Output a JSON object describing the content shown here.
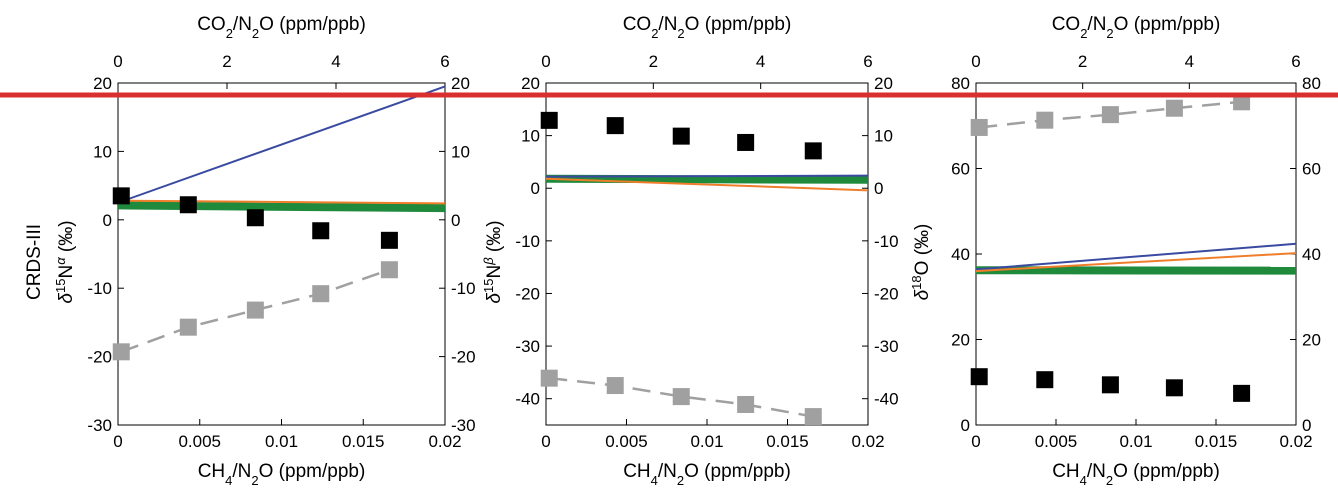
{
  "figure": {
    "row_label": "CRDS-III",
    "top_xlabel_main": "CO",
    "top_xlabel_sub1": "2",
    "top_xlabel_mid": "/N",
    "top_xlabel_sub2": "2",
    "top_xlabel_tail": "O (ppm/ppb)",
    "bottom_xlabel_main": "CH",
    "bottom_xlabel_sub1": "4",
    "bottom_xlabel_mid": "/N",
    "bottom_xlabel_sub2": "2",
    "bottom_xlabel_tail": "O (ppm/ppb)",
    "overlay_line_color": "#d9302f"
  },
  "chart_data": [
    {
      "type": "scatter",
      "ylabel_delta": "δ",
      "ylabel_sup": "15",
      "ylabel_base": "N",
      "ylabel_exp": "α",
      "ylabel_unit": " (‰)",
      "xlim": [
        0,
        0.02
      ],
      "ylim": [
        -30,
        20
      ],
      "x2lim": [
        0,
        6
      ],
      "xticks": [
        "0",
        "0.005",
        "0.01",
        "0.015",
        "0.02"
      ],
      "x2ticks": [
        "0",
        "2",
        "4",
        "6"
      ],
      "yticks": [
        "-30",
        "-20",
        "-10",
        "0",
        "10",
        "20"
      ],
      "y2ticks": [
        "-30",
        "-20",
        "-10",
        "0",
        "10",
        "20"
      ],
      "series": [
        {
          "marker": "square",
          "color": "#000000",
          "x": [
            0.0002,
            0.0043,
            0.0084,
            0.0124,
            0.0166
          ],
          "y": [
            3.5,
            2.2,
            0.3,
            -1.6,
            -3.0
          ]
        },
        {
          "marker": "square",
          "color": "#a0a0a0",
          "dashed_line": true,
          "x": [
            0.0002,
            0.0043,
            0.0084,
            0.0124,
            0.0166
          ],
          "y": [
            -19.3,
            -15.7,
            -13.2,
            -10.8,
            -7.3
          ]
        },
        {
          "line": true,
          "color": "#3a4aa0",
          "width": 2,
          "x": [
            0,
            0.02
          ],
          "y": [
            2.5,
            19.5
          ]
        },
        {
          "line": true,
          "color": "#1f8a3c",
          "width": 8,
          "x": [
            0,
            0.02
          ],
          "y": [
            2.1,
            1.7
          ]
        },
        {
          "line": true,
          "color": "#f07d2a",
          "width": 2,
          "x": [
            0,
            0.02
          ],
          "y": [
            2.8,
            2.4
          ]
        }
      ]
    },
    {
      "type": "scatter",
      "ylabel_delta": "δ",
      "ylabel_sup": "15",
      "ylabel_base": "N",
      "ylabel_exp": "β",
      "ylabel_unit": " (‰)",
      "xlim": [
        0,
        0.02
      ],
      "ylim": [
        -45,
        20
      ],
      "x2lim": [
        0,
        6
      ],
      "xticks": [
        "0",
        "0.005",
        "0.01",
        "0.015",
        "0.02"
      ],
      "x2ticks": [
        "0",
        "2",
        "4",
        "6"
      ],
      "yticks": [
        "-40",
        "-30",
        "-20",
        "-10",
        "0",
        "10",
        "20"
      ],
      "y2ticks": [
        "-40",
        "-30",
        "-20",
        "-10",
        "0",
        "10",
        "20"
      ],
      "series": [
        {
          "marker": "square",
          "color": "#000000",
          "x": [
            0.0002,
            0.0043,
            0.0084,
            0.0124,
            0.0166
          ],
          "y": [
            12.9,
            11.9,
            9.9,
            8.7,
            7.1
          ]
        },
        {
          "marker": "square",
          "color": "#a0a0a0",
          "dashed_line": true,
          "x": [
            0.0002,
            0.0043,
            0.0084,
            0.0124,
            0.0166
          ],
          "y": [
            -36.1,
            -37.5,
            -39.6,
            -41.1,
            -43.4
          ]
        },
        {
          "line": true,
          "color": "#1f8a3c",
          "width": 8,
          "x": [
            0,
            0.02
          ],
          "y": [
            1.8,
            1.6
          ]
        },
        {
          "line": true,
          "color": "#3a4aa0",
          "width": 2,
          "x": [
            0,
            0.02
          ],
          "y": [
            2.2,
            2.4
          ]
        },
        {
          "line": true,
          "color": "#f07d2a",
          "width": 2,
          "x": [
            0,
            0.02
          ],
          "y": [
            1.8,
            -0.4
          ]
        }
      ]
    },
    {
      "type": "scatter",
      "ylabel_delta": "δ",
      "ylabel_sup": "18",
      "ylabel_base": "O",
      "ylabel_exp": "",
      "ylabel_unit": " (‰)",
      "xlim": [
        0,
        0.02
      ],
      "ylim": [
        0,
        80
      ],
      "x2lim": [
        0,
        6
      ],
      "xticks": [
        "0",
        "0.005",
        "0.01",
        "0.015",
        "0.02"
      ],
      "x2ticks": [
        "0",
        "2",
        "4",
        "6"
      ],
      "yticks": [
        "0",
        "20",
        "40",
        "60",
        "80"
      ],
      "y2ticks": [
        "0",
        "20",
        "40",
        "60",
        "80"
      ],
      "series": [
        {
          "marker": "square",
          "color": "#000000",
          "x": [
            0.0002,
            0.0043,
            0.0084,
            0.0124,
            0.0166
          ],
          "y": [
            11.3,
            10.6,
            9.4,
            8.7,
            7.4
          ]
        },
        {
          "marker": "square",
          "color": "#a0a0a0",
          "dashed_line": true,
          "x": [
            0.0002,
            0.0043,
            0.0084,
            0.0124,
            0.0166
          ],
          "y": [
            69.6,
            71.3,
            72.6,
            74.1,
            75.6
          ]
        },
        {
          "line": true,
          "color": "#1f8a3c",
          "width": 8,
          "x": [
            0,
            0.02
          ],
          "y": [
            36.2,
            36.1
          ]
        },
        {
          "line": true,
          "color": "#3a4aa0",
          "width": 2,
          "x": [
            0,
            0.02
          ],
          "y": [
            36.4,
            42.4
          ]
        },
        {
          "line": true,
          "color": "#f07d2a",
          "width": 2,
          "x": [
            0,
            0.02
          ],
          "y": [
            36.0,
            40.2
          ]
        }
      ]
    }
  ]
}
